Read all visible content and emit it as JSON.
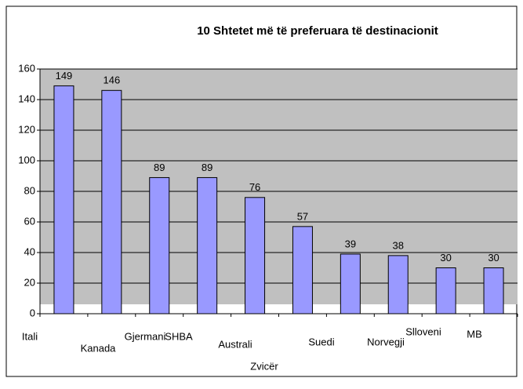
{
  "chart_data": {
    "type": "bar",
    "title": "10 Shtetet  më të preferuara të destinacionit",
    "categories": [
      "Itali",
      "Kanada",
      "Gjermani",
      "SHBA",
      "Australi",
      "Zvicër",
      "Suedi",
      "Norvegji",
      "Slloveni",
      "MB"
    ],
    "values": [
      149,
      146,
      89,
      89,
      76,
      57,
      39,
      38,
      30,
      30
    ],
    "color": "#9999ff",
    "ylim": [
      0,
      160
    ],
    "yticks": [
      0,
      20,
      40,
      60,
      80,
      100,
      120,
      140,
      160
    ],
    "grid": true
  }
}
